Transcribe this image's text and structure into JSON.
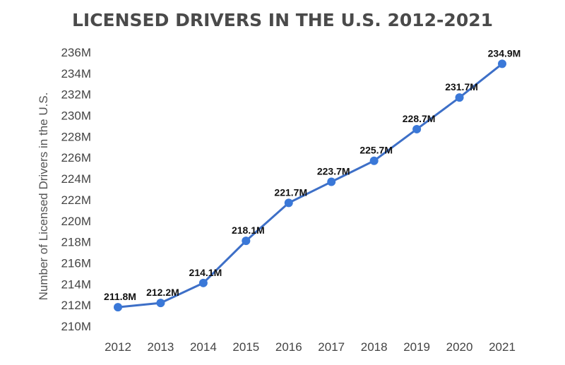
{
  "chart_data": {
    "type": "line",
    "title": "LICENSED DRIVERS IN THE U.S. 2012-2021",
    "xlabel": "",
    "ylabel": "Number of Licensed Drivers in the U.S.",
    "categories": [
      "2012",
      "2013",
      "2014",
      "2015",
      "2016",
      "2017",
      "2018",
      "2019",
      "2020",
      "2021"
    ],
    "values": [
      211.8,
      212.2,
      214.1,
      218.1,
      221.7,
      223.7,
      225.7,
      228.7,
      231.7,
      234.9
    ],
    "data_labels": [
      "211.8M",
      "212.2M",
      "214.1M",
      "218.1M",
      "221.7M",
      "223.7M",
      "225.7M",
      "228.7M",
      "231.7M",
      "234.9M"
    ],
    "yticks": [
      210,
      212,
      214,
      216,
      218,
      220,
      222,
      224,
      226,
      228,
      230,
      232,
      234,
      236
    ],
    "ytick_labels": [
      "210M",
      "212M",
      "214M",
      "216M",
      "218M",
      "220M",
      "222M",
      "224M",
      "226M",
      "228M",
      "230M",
      "232M",
      "234M",
      "236M"
    ],
    "ylim": [
      210,
      236
    ],
    "grid": false,
    "legend": "none",
    "colors": {
      "line": "#3d6fc7",
      "marker": "#3a78d8"
    }
  }
}
